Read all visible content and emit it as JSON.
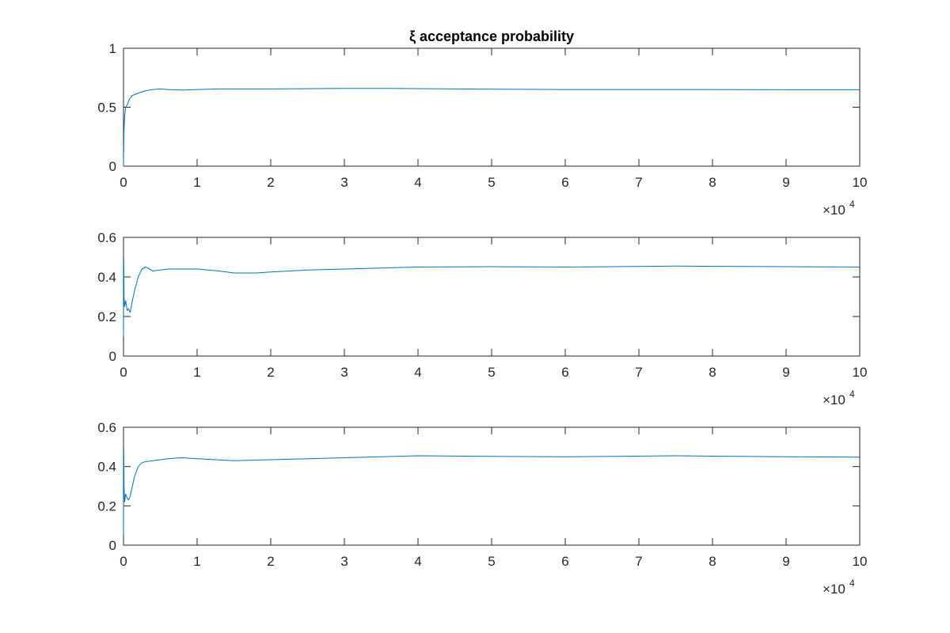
{
  "chart_data": [
    {
      "type": "line",
      "title": "ξ acceptance probability",
      "xlim": [
        0,
        100000
      ],
      "ylim": [
        0,
        1
      ],
      "x_ticks": [
        0,
        1,
        2,
        3,
        4,
        5,
        6,
        7,
        8,
        9,
        10
      ],
      "y_ticks": [
        0,
        0.5,
        1
      ],
      "x_tick_labels": [
        "0",
        "1",
        "2",
        "3",
        "4",
        "5",
        "6",
        "7",
        "8",
        "9",
        "10"
      ],
      "y_tick_labels": [
        "0",
        "0.5",
        "1"
      ],
      "x_exponent_base": "×10",
      "x_exponent_power": "4",
      "grid": false,
      "series": [
        {
          "color": "#0072bd",
          "x": [
            0,
            50,
            150,
            300,
            500,
            800,
            1200,
            2000,
            3000,
            4000,
            5000,
            6000,
            8000,
            10000,
            13000,
            20000,
            30000,
            36000,
            45000,
            60000,
            75000,
            90000,
            100000
          ],
          "y": [
            0,
            0.28,
            0.42,
            0.5,
            0.52,
            0.57,
            0.6,
            0.62,
            0.64,
            0.65,
            0.655,
            0.65,
            0.645,
            0.65,
            0.655,
            0.655,
            0.66,
            0.66,
            0.655,
            0.65,
            0.65,
            0.648,
            0.648
          ]
        }
      ]
    },
    {
      "type": "line",
      "title": "",
      "xlim": [
        0,
        100000
      ],
      "ylim": [
        0,
        0.6
      ],
      "x_ticks": [
        0,
        1,
        2,
        3,
        4,
        5,
        6,
        7,
        8,
        9,
        10
      ],
      "y_ticks": [
        0,
        0.2,
        0.4,
        0.6
      ],
      "x_tick_labels": [
        "0",
        "1",
        "2",
        "3",
        "4",
        "5",
        "6",
        "7",
        "8",
        "9",
        "10"
      ],
      "y_tick_labels": [
        "0",
        "0.2",
        "0.4",
        "0.6"
      ],
      "x_exponent_base": "×10",
      "x_exponent_power": "4",
      "grid": false,
      "series": [
        {
          "color": "#0072bd",
          "x": [
            0,
            30,
            80,
            150,
            300,
            500,
            700,
            900,
            1200,
            1500,
            2000,
            2500,
            3000,
            4000,
            6000,
            8000,
            10000,
            13000,
            15000,
            18000,
            20000,
            25000,
            30000,
            40000,
            50000,
            60000,
            75000,
            90000,
            100000
          ],
          "y": [
            0.1,
            0.5,
            0.3,
            0.25,
            0.28,
            0.23,
            0.24,
            0.22,
            0.28,
            0.33,
            0.4,
            0.44,
            0.45,
            0.43,
            0.44,
            0.44,
            0.44,
            0.43,
            0.42,
            0.42,
            0.425,
            0.435,
            0.44,
            0.45,
            0.452,
            0.45,
            0.455,
            0.452,
            0.45
          ]
        }
      ]
    },
    {
      "type": "line",
      "title": "",
      "xlim": [
        0,
        100000
      ],
      "ylim": [
        0,
        0.6
      ],
      "x_ticks": [
        0,
        1,
        2,
        3,
        4,
        5,
        6,
        7,
        8,
        9,
        10
      ],
      "y_ticks": [
        0,
        0.2,
        0.4,
        0.6
      ],
      "x_tick_labels": [
        "0",
        "1",
        "2",
        "3",
        "4",
        "5",
        "6",
        "7",
        "8",
        "9",
        "10"
      ],
      "y_tick_labels": [
        "0",
        "0.2",
        "0.4",
        "0.6"
      ],
      "x_exponent_base": "×10",
      "x_exponent_power": "4",
      "grid": false,
      "series": [
        {
          "color": "#0072bd",
          "x": [
            0,
            30,
            80,
            150,
            300,
            500,
            700,
            900,
            1200,
            1500,
            2000,
            2500,
            3000,
            4000,
            6000,
            8000,
            10000,
            15000,
            20000,
            30000,
            40000,
            50000,
            60000,
            75000,
            90000,
            100000
          ],
          "y": [
            0.05,
            0.5,
            0.3,
            0.22,
            0.26,
            0.24,
            0.23,
            0.25,
            0.3,
            0.35,
            0.4,
            0.42,
            0.425,
            0.43,
            0.44,
            0.445,
            0.44,
            0.43,
            0.435,
            0.445,
            0.455,
            0.452,
            0.45,
            0.455,
            0.45,
            0.448
          ]
        }
      ]
    }
  ]
}
